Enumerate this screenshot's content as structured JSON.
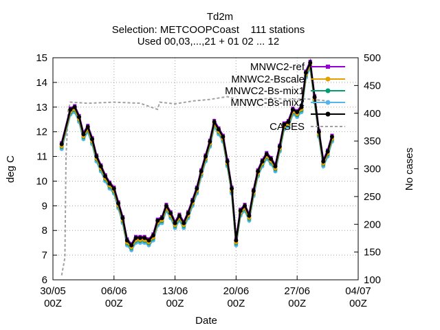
{
  "chart_data": {
    "type": "line",
    "title": "Td2m",
    "subtitle": "Selection: METCOOPCoast    111 stations",
    "subtitle2": "Used 00,03,...,21 + 01 02 ... 12",
    "xlabel": "Date",
    "ylabel": "deg C",
    "y2label": "No cases",
    "ylim": [
      6,
      15
    ],
    "y2lim": [
      100,
      500
    ],
    "xlim": [
      "2021-05-30",
      "2021-07-04"
    ],
    "y_ticks": [
      "6",
      "7",
      "8",
      "9",
      "10",
      "11",
      "12",
      "13",
      "14",
      "15"
    ],
    "y2_ticks": [
      "100",
      "150",
      "200",
      "250",
      "300",
      "350",
      "400",
      "450",
      "500"
    ],
    "x_ticks": [
      {
        "date": "2021-05-30",
        "l1": "30/05",
        "l2": "00Z"
      },
      {
        "date": "2021-06-06",
        "l1": "06/06",
        "l2": "00Z"
      },
      {
        "date": "2021-06-13",
        "l1": "13/06",
        "l2": "00Z"
      },
      {
        "date": "2021-06-20",
        "l1": "20/06",
        "l2": "00Z"
      },
      {
        "date": "2021-06-27",
        "l1": "27/06",
        "l2": "00Z"
      },
      {
        "date": "2021-07-04",
        "l1": "04/07",
        "l2": "00Z"
      }
    ],
    "grid": true,
    "legend_position": "top-right",
    "series": [
      {
        "name": "MNWC2-ref",
        "color": "#9400d3",
        "marker": "square",
        "offset": 0.05
      },
      {
        "name": "MNWC2-Bscale",
        "color": "#e69f00",
        "marker": "circle",
        "offset": -0.08
      },
      {
        "name": "MNWC2-Bs-mix1",
        "color": "#009e73",
        "marker": "circle",
        "offset": -0.12
      },
      {
        "name": "MNWC-Bs-mix2",
        "color": "#56b4e9",
        "marker": "circle",
        "offset": -0.2
      },
      {
        "name": "",
        "color": "#000000",
        "marker": "circle",
        "offset": 0
      }
    ],
    "cases_series": {
      "name": "CASES",
      "color": "#a0a0a0"
    },
    "main_curve": [
      [
        "2021-05-31",
        11.5
      ],
      [
        "2021-06-01",
        12.9
      ],
      [
        "2021-06-01T12",
        13.0
      ],
      [
        "2021-06-02",
        12.6
      ],
      [
        "2021-06-02T12",
        11.9
      ],
      [
        "2021-06-03",
        12.2
      ],
      [
        "2021-06-03T12",
        11.7
      ],
      [
        "2021-06-04",
        11.0
      ],
      [
        "2021-06-04T12",
        10.6
      ],
      [
        "2021-06-05",
        10.2
      ],
      [
        "2021-06-05T12",
        9.9
      ],
      [
        "2021-06-06",
        9.7
      ],
      [
        "2021-06-06T12",
        9.1
      ],
      [
        "2021-06-07",
        8.5
      ],
      [
        "2021-06-07T12",
        7.6
      ],
      [
        "2021-06-08",
        7.4
      ],
      [
        "2021-06-08T12",
        7.7
      ],
      [
        "2021-06-09",
        7.7
      ],
      [
        "2021-06-09T12",
        7.7
      ],
      [
        "2021-06-10",
        7.6
      ],
      [
        "2021-06-10T12",
        7.8
      ],
      [
        "2021-06-11",
        8.4
      ],
      [
        "2021-06-11T12",
        8.5
      ],
      [
        "2021-06-12",
        9.0
      ],
      [
        "2021-06-12T12",
        8.7
      ],
      [
        "2021-06-13",
        8.3
      ],
      [
        "2021-06-13T12",
        8.6
      ],
      [
        "2021-06-14",
        8.3
      ],
      [
        "2021-06-14T12",
        8.7
      ],
      [
        "2021-06-15",
        9.2
      ],
      [
        "2021-06-15T12",
        9.7
      ],
      [
        "2021-06-16",
        10.4
      ],
      [
        "2021-06-16T12",
        11.0
      ],
      [
        "2021-06-17",
        11.6
      ],
      [
        "2021-06-17T12",
        12.4
      ],
      [
        "2021-06-18",
        12.1
      ],
      [
        "2021-06-18T12",
        11.8
      ],
      [
        "2021-06-19",
        10.8
      ],
      [
        "2021-06-19T12",
        9.7
      ],
      [
        "2021-06-20",
        7.6
      ],
      [
        "2021-06-20T12",
        8.8
      ],
      [
        "2021-06-21",
        9.0
      ],
      [
        "2021-06-21T12",
        8.6
      ],
      [
        "2021-06-22",
        9.6
      ],
      [
        "2021-06-22T12",
        10.4
      ],
      [
        "2021-06-23",
        10.8
      ],
      [
        "2021-06-23T12",
        11.1
      ],
      [
        "2021-06-24",
        10.9
      ],
      [
        "2021-06-24T12",
        10.6
      ],
      [
        "2021-06-25",
        11.4
      ],
      [
        "2021-06-25T12",
        12.3
      ],
      [
        "2021-06-26",
        12.4
      ],
      [
        "2021-06-26T12",
        12.9
      ],
      [
        "2021-06-27",
        12.8
      ],
      [
        "2021-06-27T12",
        13.0
      ],
      [
        "2021-06-28",
        14.4
      ],
      [
        "2021-06-28T12",
        14.8
      ],
      [
        "2021-06-29",
        13.4
      ],
      [
        "2021-06-29T12",
        12.0
      ],
      [
        "2021-06-30",
        10.8
      ],
      [
        "2021-06-30T12",
        11.2
      ],
      [
        "2021-07-01",
        11.8
      ]
    ],
    "cases_curve": [
      [
        "2021-05-31",
        108
      ],
      [
        "2021-05-31T09",
        140
      ],
      [
        "2021-05-31T12",
        320
      ],
      [
        "2021-05-31T18",
        405
      ],
      [
        "2021-06-01",
        420
      ],
      [
        "2021-06-03",
        418
      ],
      [
        "2021-06-06",
        420
      ],
      [
        "2021-06-09",
        418
      ],
      [
        "2021-06-11",
        407
      ],
      [
        "2021-06-11T06",
        420
      ],
      [
        "2021-06-13",
        417
      ],
      [
        "2021-06-15",
        422
      ],
      [
        "2021-06-17",
        425
      ],
      [
        "2021-06-19",
        430
      ],
      [
        "2021-06-20",
        425
      ],
      [
        "2021-06-22",
        424
      ],
      [
        "2021-06-24",
        427
      ],
      [
        "2021-06-26",
        425
      ],
      [
        "2021-06-28",
        426
      ],
      [
        "2021-06-30",
        423
      ],
      [
        "2021-07-01",
        420
      ]
    ]
  }
}
